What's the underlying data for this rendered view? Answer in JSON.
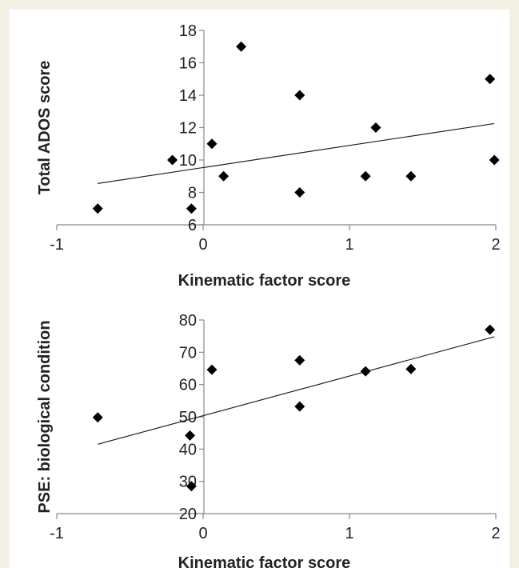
{
  "chart_data": [
    {
      "type": "scatter",
      "xlabel": "Kinematic factor score",
      "ylabel": "Total ADOS score",
      "xlim": [
        -1,
        2
      ],
      "ylim": [
        6,
        18
      ],
      "xticks": [
        "-1",
        "0",
        "1",
        "2"
      ],
      "yticks": [
        "6",
        "8",
        "10",
        "12",
        "14",
        "16",
        "18"
      ],
      "points": [
        {
          "x": -0.72,
          "y": 7
        },
        {
          "x": -0.21,
          "y": 10
        },
        {
          "x": -0.08,
          "y": 7
        },
        {
          "x": 0.06,
          "y": 11
        },
        {
          "x": 0.14,
          "y": 9
        },
        {
          "x": 0.26,
          "y": 17
        },
        {
          "x": 0.66,
          "y": 14
        },
        {
          "x": 0.66,
          "y": 8
        },
        {
          "x": 1.11,
          "y": 9
        },
        {
          "x": 1.18,
          "y": 12
        },
        {
          "x": 1.42,
          "y": 9
        },
        {
          "x": 1.96,
          "y": 15
        },
        {
          "x": 1.99,
          "y": 10
        }
      ],
      "trendline": {
        "x": [
          -0.72,
          1.99
        ],
        "y": [
          8.55,
          12.25
        ]
      },
      "grid": false,
      "marker": "diamond",
      "color": "#000000"
    },
    {
      "type": "scatter",
      "xlabel": "Kinematic factor score",
      "ylabel": "PSE: biological condition",
      "xlim": [
        -1,
        2
      ],
      "ylim": [
        20,
        80
      ],
      "xticks": [
        "-1",
        "0",
        "1",
        "2"
      ],
      "yticks": [
        "20",
        "30",
        "40",
        "50",
        "60",
        "70",
        "80"
      ],
      "points": [
        {
          "x": -0.72,
          "y": 49.8
        },
        {
          "x": -0.09,
          "y": 44.2
        },
        {
          "x": -0.08,
          "y": 28.5
        },
        {
          "x": 0.06,
          "y": 64.6
        },
        {
          "x": 0.66,
          "y": 67.5
        },
        {
          "x": 0.66,
          "y": 53.2
        },
        {
          "x": 1.11,
          "y": 64.1
        },
        {
          "x": 1.42,
          "y": 64.8
        },
        {
          "x": 1.96,
          "y": 77.0
        }
      ],
      "trendline": {
        "x": [
          -0.72,
          1.99
        ],
        "y": [
          41.5,
          74.8
        ]
      },
      "grid": false,
      "marker": "diamond",
      "color": "#000000"
    }
  ]
}
